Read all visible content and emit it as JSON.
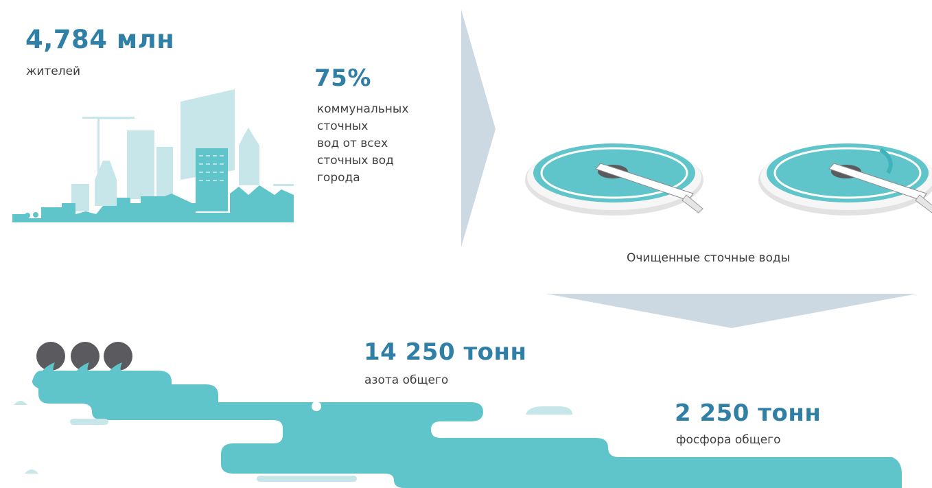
{
  "population": {
    "value": "4,784 млн",
    "label": "жителей"
  },
  "share": {
    "value": "75%",
    "label_lines": [
      "коммунальных",
      "сточных",
      "вод от всех",
      "сточных вод",
      "города"
    ]
  },
  "treated_water": {
    "label": "Очищенные сточные воды"
  },
  "nitrogen": {
    "value": "14 250 тонн",
    "label": "азота общего"
  },
  "phosphorus": {
    "value": "2 250 тонн",
    "label": "фосфора общего"
  },
  "colors": {
    "accent_text": "#2f7fa6",
    "teal": "#5fc5cb",
    "light_teal": "#c7e6ea",
    "arrow_gray": "#cdd9e2",
    "dark_gray": "#5b5b5f"
  },
  "icons": [
    "city-skyline-icon",
    "treatment-tank-icon",
    "pipe-outlet-icon",
    "water-stream-icon",
    "flow-arrow-icon"
  ]
}
